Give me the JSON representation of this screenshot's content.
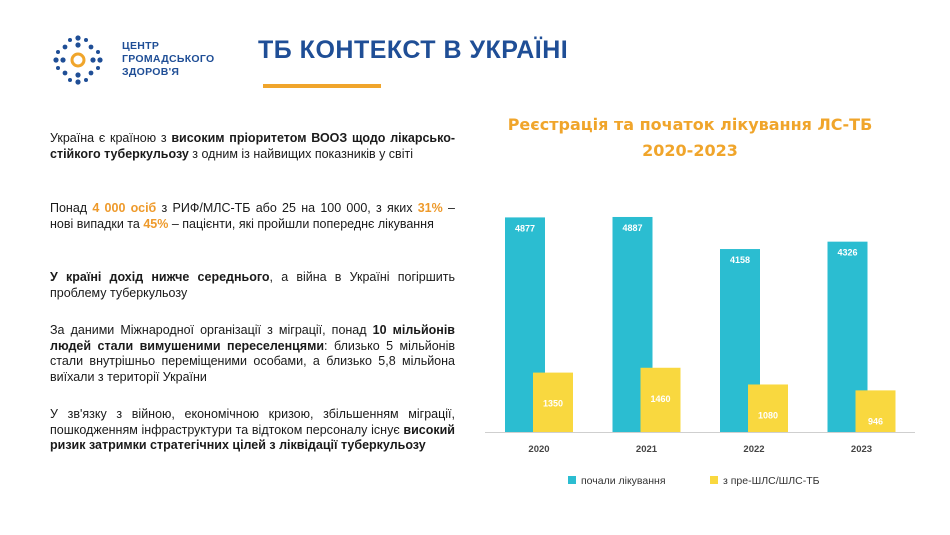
{
  "logo": {
    "icon": "dotted-circle-logo-icon",
    "lines": [
      "ЦЕНТР",
      "ГРОМАДСЬКОГО",
      "ЗДОРОВ'Я"
    ]
  },
  "title": "ТБ КОНТЕКСТ В УКРАЇНІ",
  "paragraphs": {
    "p1": {
      "t1": "Україна є країною з ",
      "b1": "високим пріоритетом ВООЗ щодо лікарсько-стійкого туберкульозу",
      "t2": " з одним із найвищих показників у світі"
    },
    "p2": {
      "t1": "Понад ",
      "h1": "4 000 осіб",
      "t2": " з РИФ/МЛС-ТБ або 25 на 100 000, з яких ",
      "h2": "31%",
      "t3": " – нові випадки та ",
      "h3": "45%",
      "t4": " – пацієнти, які пройшли попереднє лікування"
    },
    "p3": {
      "b1": "У країні дохід нижче середнього",
      "t1": ", а війна в Україні погіршить проблему туберкульозу"
    },
    "p4": {
      "t1": "За даними Міжнародної організації з міграції, понад ",
      "b1": "10 мільйонів людей стали вимушеними переселенцями",
      "t2": ": близько 5 мільйонів стали внутрішньо переміщеними особами, а близько 5,8 мільйона виїхали з території України"
    },
    "p5": {
      "t1": "У зв'язку з війною, економічною кризою, збільшенням міграції, пошкодженням інфраструктури та відтоком персоналу існує ",
      "b1": "високий ризик затримки стратегічних цілей з ліквідації туберкульозу"
    }
  },
  "colors": {
    "accent_orange": "#f0a52b",
    "brand_blue": "#1f4e96",
    "series_blue": "#2bbdd1",
    "series_yellow": "#f9d83f"
  },
  "chart_data": {
    "type": "bar",
    "title": "Реєстрація та початок лікування ЛС-ТБ 2020-2023",
    "categories": [
      "2020",
      "2021",
      "2022",
      "2023"
    ],
    "series": [
      {
        "name": "почали лікування",
        "color": "#2bbdd1",
        "values": [
          4877,
          4887,
          4158,
          4326
        ]
      },
      {
        "name": "з пре-ШЛС/ШЛС-ТБ",
        "color": "#f9d83f",
        "values": [
          1350,
          1460,
          1080,
          946
        ]
      }
    ],
    "ylim": [
      0,
      5500
    ],
    "grid": false,
    "legend": "bottom",
    "xlabel": "",
    "ylabel": ""
  }
}
